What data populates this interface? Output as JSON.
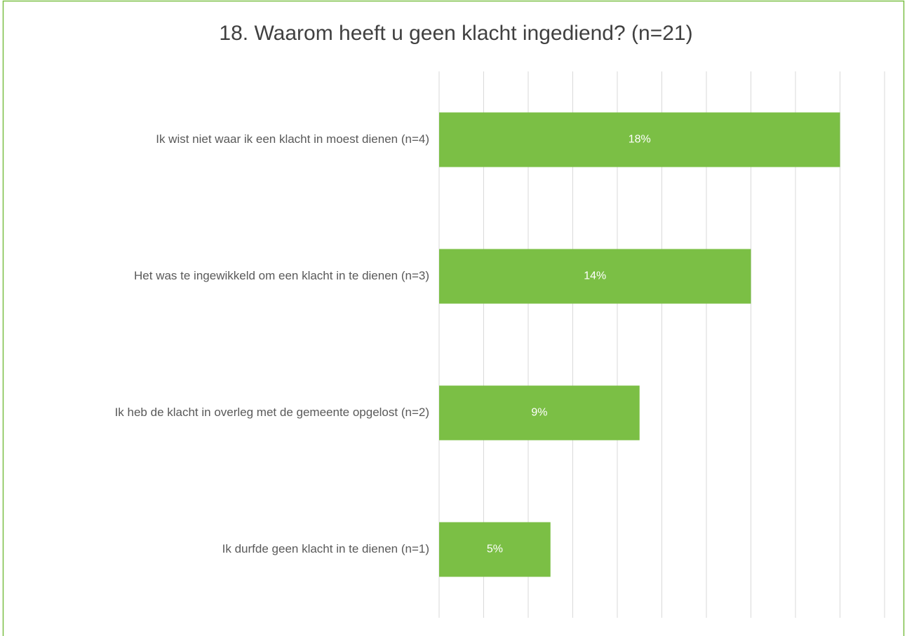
{
  "chart_data": {
    "type": "hbar",
    "title": "18. Waarom heeft u geen klacht ingediend? (n=21)",
    "categories": [
      "Ik wist niet waar ik een klacht in moest dienen (n=4)",
      "Het was te ingewikkeld om een klacht in te dienen (n=3)",
      "Ik heb de klacht in overleg met de gemeente opgelost (n=2)",
      "Ik durfde geen klacht in te dienen (n=1)"
    ],
    "values": [
      18,
      14,
      9,
      5
    ],
    "value_labels": [
      "18%",
      "14%",
      "9%",
      "5%"
    ],
    "color": "#7bbf45",
    "xlim": [
      0,
      20
    ],
    "xticks": [
      0,
      2,
      4,
      6,
      8,
      10,
      12,
      14,
      16,
      18,
      20
    ],
    "grid": true
  }
}
